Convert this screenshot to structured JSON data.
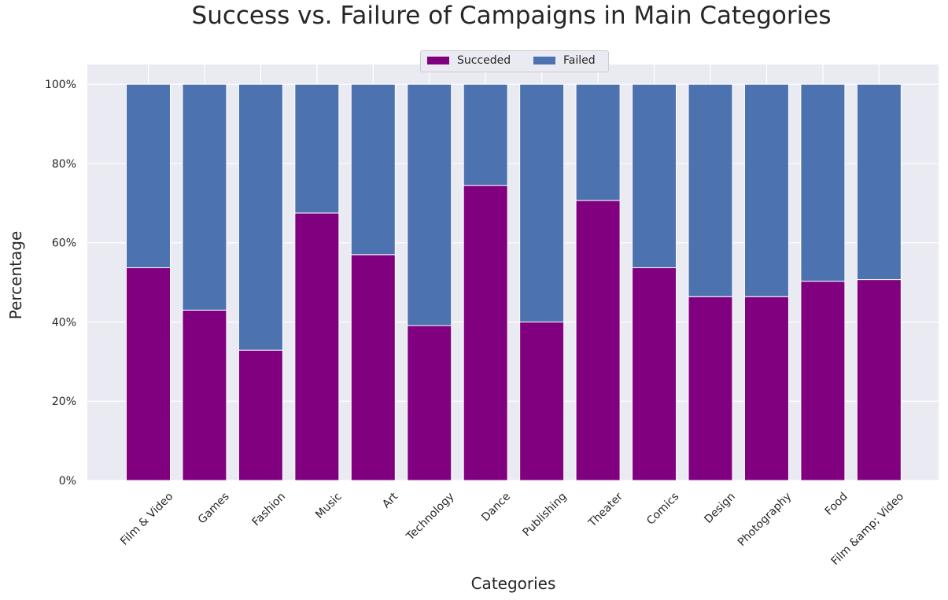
{
  "chart_data": {
    "type": "bar",
    "stacked": true,
    "title": "Success vs. Failure of Campaigns in Main Categories",
    "xlabel": "Categories",
    "ylabel": "Percentage",
    "ylim": [
      0,
      105
    ],
    "yticks": [
      "0%",
      "20%",
      "40%",
      "60%",
      "80%",
      "100%"
    ],
    "grid": true,
    "legend_position": "top-center",
    "categories": [
      "Film & Video",
      "Games",
      "Fashion",
      "Music",
      "Art",
      "Technology",
      "Dance",
      "Publishing",
      "Theater",
      "Comics",
      "Design",
      "Photography",
      "Food",
      "Film &amp; Video"
    ],
    "series": [
      {
        "name": "Succeded",
        "color": "#800080",
        "values": [
          53.7,
          43.0,
          32.9,
          67.5,
          57.0,
          39.1,
          74.5,
          40.0,
          70.7,
          53.7,
          46.4,
          46.4,
          50.3,
          50.7
        ]
      },
      {
        "name": "Failed",
        "color": "#4c72b0",
        "values": [
          46.3,
          57.0,
          67.1,
          32.5,
          43.0,
          60.9,
          25.5,
          60.0,
          29.3,
          46.3,
          53.6,
          53.6,
          49.7,
          49.3
        ]
      }
    ]
  }
}
